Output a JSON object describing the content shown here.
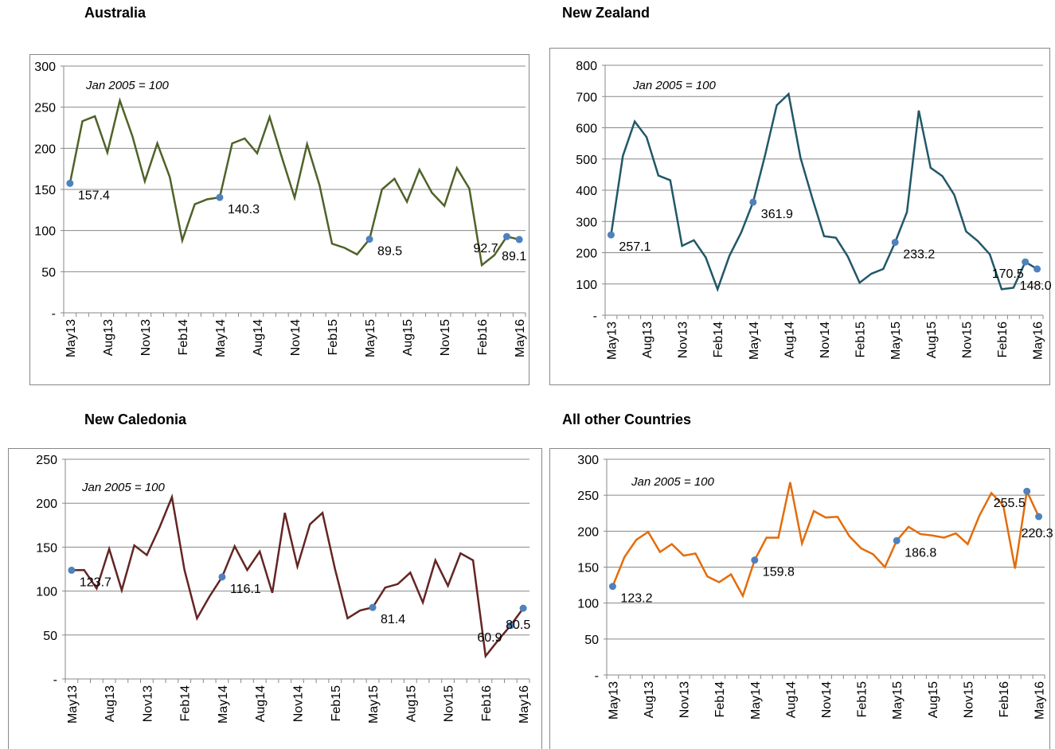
{
  "chart_data": [
    {
      "type": "line",
      "title": "Australia",
      "annotation": "Jan 2005 = 100",
      "categories": [
        "May13",
        null,
        null,
        "Aug13",
        null,
        null,
        "Nov13",
        null,
        null,
        "Feb14",
        null,
        null,
        "May14",
        null,
        null,
        "Aug14",
        null,
        null,
        "Nov14",
        null,
        null,
        "Feb15",
        null,
        null,
        "May15",
        null,
        null,
        "Aug15",
        null,
        null,
        "Nov15",
        null,
        null,
        "Feb16",
        null,
        null,
        "May16"
      ],
      "series": [
        {
          "color": "#4f6228",
          "marker_color": "#4f81bd",
          "values": [
            157.4,
            233,
            239,
            195,
            258,
            215,
            160,
            206,
            165,
            88,
            132,
            138,
            140.3,
            206,
            212,
            194,
            238,
            188,
            140,
            205,
            155,
            84,
            79,
            71,
            89.5,
            150,
            163,
            135,
            174,
            146,
            130,
            176,
            151,
            58,
            70,
            92.7,
            89.1
          ],
          "value_labels": [
            "157.4",
            null,
            null,
            null,
            null,
            null,
            null,
            null,
            null,
            null,
            null,
            null,
            "140.3",
            null,
            null,
            null,
            null,
            null,
            null,
            null,
            null,
            null,
            null,
            null,
            "89.5",
            null,
            null,
            null,
            null,
            null,
            null,
            null,
            null,
            null,
            null,
            "92.7",
            "89.1"
          ]
        }
      ],
      "ylim": [
        0,
        300
      ],
      "yticks": [
        {
          "value": 0,
          "label": "-"
        },
        50,
        100,
        150,
        200,
        250,
        300
      ],
      "grid": true
    },
    {
      "type": "line",
      "title": "New Zealand",
      "annotation": "Jan 2005 = 100",
      "categories": [
        "May13",
        null,
        null,
        "Aug13",
        null,
        null,
        "Nov13",
        null,
        null,
        "Feb14",
        null,
        null,
        "May14",
        null,
        null,
        "Aug14",
        null,
        null,
        "Nov14",
        null,
        null,
        "Feb15",
        null,
        null,
        "May15",
        null,
        null,
        "Aug15",
        null,
        null,
        "Nov15",
        null,
        null,
        "Feb16",
        null,
        null,
        "May16"
      ],
      "series": [
        {
          "color": "#215868",
          "marker_color": "#4f81bd",
          "values": [
            257.1,
            510,
            620,
            570,
            447,
            432,
            222,
            240,
            185,
            83,
            190,
            265,
            361.9,
            510,
            672,
            708,
            505,
            375,
            253,
            248,
            188,
            104,
            133,
            148,
            233.2,
            330,
            655,
            472,
            445,
            385,
            268,
            237,
            195,
            83,
            88,
            170.5,
            148.0
          ],
          "value_labels": [
            "257.1",
            null,
            null,
            null,
            null,
            null,
            null,
            null,
            null,
            null,
            null,
            null,
            "361.9",
            null,
            null,
            null,
            null,
            null,
            null,
            null,
            null,
            null,
            null,
            null,
            "233.2",
            null,
            null,
            null,
            null,
            null,
            null,
            null,
            null,
            null,
            null,
            "170.5",
            "148.0"
          ]
        }
      ],
      "ylim": [
        0,
        800
      ],
      "yticks": [
        {
          "value": 0,
          "label": "-"
        },
        100,
        200,
        300,
        400,
        500,
        600,
        700,
        800
      ],
      "grid": true
    },
    {
      "type": "line",
      "title": "New Caledonia",
      "annotation": "Jan 2005 = 100",
      "categories": [
        "May13",
        null,
        null,
        "Aug13",
        null,
        null,
        "Nov13",
        null,
        null,
        "Feb14",
        null,
        null,
        "May14",
        null,
        null,
        "Aug14",
        null,
        null,
        "Nov14",
        null,
        null,
        "Feb15",
        null,
        null,
        "May15",
        null,
        null,
        "Aug15",
        null,
        null,
        "Nov15",
        null,
        null,
        "Feb16",
        null,
        null,
        "May16"
      ],
      "series": [
        {
          "color": "#632523",
          "marker_color": "#4f81bd",
          "values": [
            123.7,
            124,
            103,
            148,
            101,
            152,
            141,
            172,
            207,
            124,
            69,
            94,
            116.1,
            151,
            124,
            145,
            98,
            189,
            128,
            176,
            189,
            125,
            69,
            78,
            81.4,
            104,
            108,
            121,
            87,
            135,
            106,
            143,
            135,
            26,
            44,
            60.9,
            80.5
          ],
          "value_labels": [
            "123.7",
            null,
            null,
            null,
            null,
            null,
            null,
            null,
            null,
            null,
            null,
            null,
            "116.1",
            null,
            null,
            null,
            null,
            null,
            null,
            null,
            null,
            null,
            null,
            null,
            "81.4",
            null,
            null,
            null,
            null,
            null,
            null,
            null,
            null,
            null,
            null,
            "60.9",
            "80.5"
          ]
        }
      ],
      "ylim": [
        0,
        250
      ],
      "yticks": [
        {
          "value": 0,
          "label": "-"
        },
        50,
        100,
        150,
        200,
        250
      ],
      "grid": true
    },
    {
      "type": "line",
      "title": "All other Countries",
      "annotation": "Jan 2005 = 100",
      "categories": [
        "May13",
        null,
        null,
        "Aug13",
        null,
        null,
        "Nov13",
        null,
        null,
        "Feb14",
        null,
        null,
        "May14",
        null,
        null,
        "Aug14",
        null,
        null,
        "Nov14",
        null,
        null,
        "Feb15",
        null,
        null,
        "May15",
        null,
        null,
        "Aug15",
        null,
        null,
        "Nov15",
        null,
        null,
        "Feb16",
        null,
        null,
        "May16"
      ],
      "series": [
        {
          "color": "#e46c0a",
          "marker_color": "#4f81bd",
          "values": [
            123.2,
            164,
            188,
            199,
            171,
            182,
            166,
            169,
            137,
            129,
            140,
            110,
            159.8,
            191,
            191,
            268,
            183,
            228,
            219,
            220,
            193,
            176,
            168,
            150,
            186.8,
            206,
            196,
            194,
            191,
            197,
            182,
            222,
            253,
            236,
            148,
            255.5,
            220.3
          ],
          "value_labels": [
            "123.2",
            null,
            null,
            null,
            null,
            null,
            null,
            null,
            null,
            null,
            null,
            null,
            "159.8",
            null,
            null,
            null,
            null,
            null,
            null,
            null,
            null,
            null,
            null,
            null,
            "186.8",
            null,
            null,
            null,
            null,
            null,
            null,
            null,
            null,
            null,
            null,
            "255.5",
            "220.3"
          ]
        }
      ],
      "ylim": [
        0,
        300
      ],
      "yticks": [
        {
          "value": 0,
          "label": "-"
        },
        50,
        100,
        150,
        200,
        250,
        300
      ],
      "grid": true
    }
  ]
}
